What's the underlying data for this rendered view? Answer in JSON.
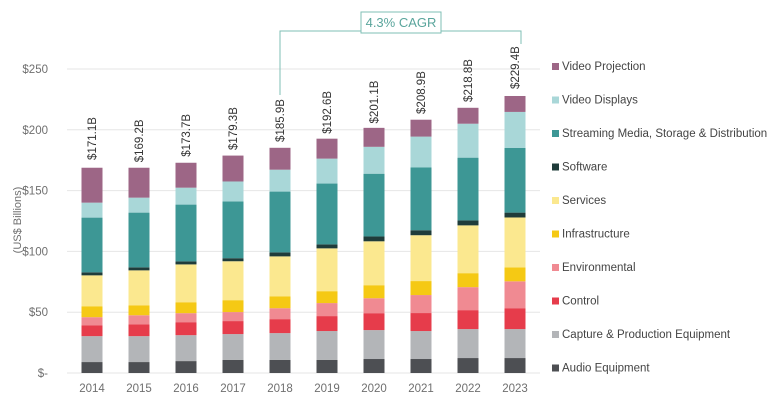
{
  "chart_data": {
    "type": "bar",
    "stacked": true,
    "title": "",
    "xlabel": "",
    "ylabel": "(US$ Billions)",
    "ylim": [
      0,
      250
    ],
    "yticks": [
      0,
      50,
      100,
      150,
      200,
      250
    ],
    "ytick_labels": [
      "$-",
      "$50",
      "$100",
      "$150",
      "$200",
      "$250"
    ],
    "grid": true,
    "legend_position": "right",
    "categories": [
      "2014",
      "2015",
      "2016",
      "2017",
      "2018",
      "2019",
      "2020",
      "2021",
      "2022",
      "2023"
    ],
    "totals": [
      171.1,
      169.2,
      173.7,
      179.3,
      185.9,
      192.6,
      201.1,
      208.9,
      218.8,
      229.4
    ],
    "total_labels": [
      "$171.1B",
      "$169.2B",
      "$173.7B",
      "$179.3B",
      "$185.9B",
      "$192.6B",
      "$201.1B",
      "$208.9B",
      "$218.8B",
      "$229.4B"
    ],
    "series": [
      {
        "name": "Audio Equipment",
        "color": "#4d4f53",
        "values": [
          9.0,
          9.0,
          9.8,
          10.7,
          10.7,
          10.7,
          11.5,
          11.5,
          12.3,
          12.3
        ]
      },
      {
        "name": "Capture & Production Equipment",
        "color": "#b3b5b8",
        "values": [
          21.3,
          21.3,
          21.3,
          21.3,
          22.1,
          23.8,
          23.8,
          23.0,
          23.8,
          23.8
        ]
      },
      {
        "name": "Control",
        "color": "#e63c4b",
        "values": [
          9.0,
          9.8,
          10.7,
          10.7,
          11.5,
          12.3,
          13.9,
          14.8,
          15.6,
          17.2
        ]
      },
      {
        "name": "Environmental",
        "color": "#f08a92",
        "values": [
          6.6,
          7.4,
          7.4,
          7.4,
          9.0,
          10.7,
          12.3,
          14.8,
          18.9,
          22.1
        ]
      },
      {
        "name": "Infrastructure",
        "color": "#f5c914",
        "values": [
          9.0,
          8.2,
          9.0,
          9.8,
          9.8,
          9.8,
          10.7,
          11.5,
          11.5,
          11.5
        ]
      },
      {
        "name": "Services",
        "color": "#fbe88f",
        "values": [
          25.4,
          28.7,
          31.1,
          32.0,
          32.8,
          35.2,
          36.1,
          37.7,
          39.3,
          41.0
        ]
      },
      {
        "name": "Software",
        "color": "#1f3c3a",
        "values": [
          2.5,
          2.5,
          2.5,
          2.5,
          3.3,
          3.3,
          4.0,
          4.1,
          4.1,
          4.0
        ]
      },
      {
        "name": "Streaming Media, Storage & Distribution",
        "color": "#3d9795",
        "values": [
          45.0,
          45.0,
          46.7,
          46.7,
          50.0,
          50.0,
          51.6,
          51.6,
          51.6,
          53.3
        ]
      },
      {
        "name": "Video Displays",
        "color": "#a9d7d8",
        "values": [
          12.3,
          12.3,
          13.9,
          16.4,
          18.0,
          20.5,
          22.1,
          25.4,
          27.9,
          29.5
        ]
      },
      {
        "name": "Video Projection",
        "color": "#9d6686",
        "values": [
          28.7,
          24.6,
          20.5,
          21.3,
          18.0,
          16.4,
          15.6,
          13.9,
          13.1,
          13.1
        ]
      }
    ],
    "annotation": {
      "label": "4.3% CAGR",
      "from_category": "2018",
      "to_category": "2023",
      "color": "#7fbfb5"
    }
  }
}
